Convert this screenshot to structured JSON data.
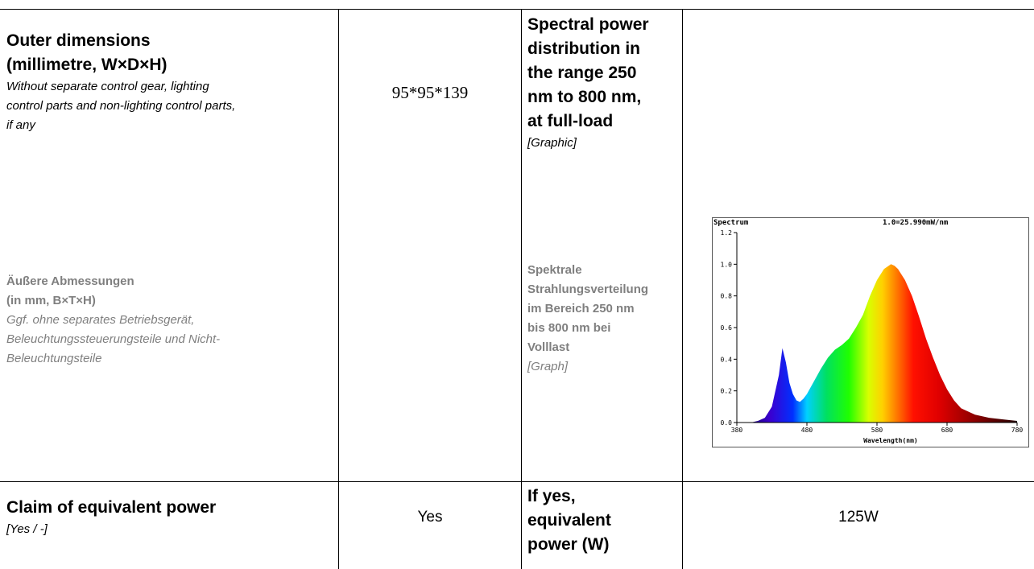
{
  "row1": {
    "label_en": {
      "title": [
        "Outer dimensions",
        "(millimetre, W×D×H)"
      ],
      "sub": [
        "Without separate control gear, lighting",
        "control parts and non-lighting control parts,",
        "if any"
      ]
    },
    "label_de": {
      "title": [
        "Äußere Abmessungen",
        "(in mm, B×T×H)"
      ],
      "sub": [
        "Ggf. ohne separates Betriebsgerät,",
        "Beleuchtungssteuerungsteile und Nicht-",
        "Beleuchtungsteile"
      ]
    },
    "value": "95*95*139",
    "label2_en": {
      "title": [
        "Spectral power",
        "distribution in",
        "the range 250",
        "nm to 800 nm,",
        "at full-load"
      ],
      "sub": "[Graphic]"
    },
    "label2_de": {
      "title": [
        "Spektrale",
        "Strahlungsverteilung",
        "im Bereich 250 nm",
        "bis 800 nm bei",
        "Volllast"
      ],
      "sub": "[Graph]"
    }
  },
  "row2": {
    "label_en": {
      "title": "Claim of equivalent power",
      "sub": "[Yes / -]"
    },
    "value": "Yes",
    "label2_en": {
      "title": [
        "If yes,",
        "equivalent",
        "power (W)"
      ]
    },
    "value2": "125W"
  },
  "chart_data": {
    "type": "area",
    "title": "Spectrum",
    "annotation": "1.0=25.990mW/nm",
    "xlabel": "Wavelength(nm)",
    "ylabel": "",
    "xlim": [
      380,
      780
    ],
    "ylim": [
      0,
      1.2
    ],
    "xticks": [
      "380",
      "480",
      "580",
      "680",
      "780"
    ],
    "yticks": [
      "0.0",
      "0.2",
      "0.4",
      "0.6",
      "0.8",
      "1.0",
      "1.2"
    ],
    "grid": false,
    "x": [
      380,
      400,
      410,
      420,
      430,
      440,
      445,
      450,
      455,
      460,
      465,
      470,
      475,
      480,
      490,
      500,
      510,
      520,
      530,
      540,
      550,
      560,
      570,
      580,
      590,
      600,
      605,
      610,
      620,
      630,
      640,
      650,
      660,
      670,
      680,
      690,
      700,
      720,
      740,
      760,
      780
    ],
    "y": [
      0.0,
      0.0,
      0.01,
      0.03,
      0.1,
      0.3,
      0.47,
      0.38,
      0.25,
      0.18,
      0.14,
      0.13,
      0.15,
      0.18,
      0.26,
      0.34,
      0.41,
      0.46,
      0.49,
      0.53,
      0.6,
      0.68,
      0.8,
      0.9,
      0.97,
      1.0,
      0.99,
      0.97,
      0.9,
      0.8,
      0.67,
      0.53,
      0.41,
      0.3,
      0.21,
      0.14,
      0.09,
      0.05,
      0.03,
      0.02,
      0.01
    ]
  }
}
